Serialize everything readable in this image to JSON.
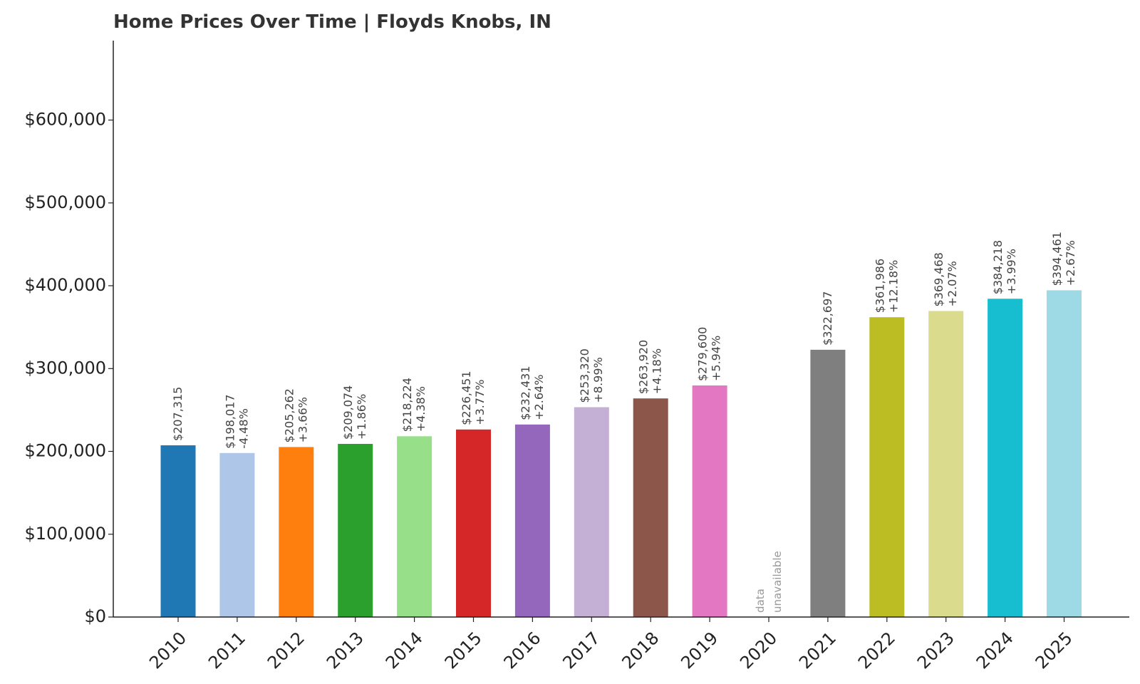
{
  "chart_data": {
    "type": "bar",
    "title": "Home Prices Over Time | Floyds Knobs, IN",
    "xlabel": "",
    "ylabel": "",
    "ylim": [
      0,
      700000
    ],
    "yticks": [
      0,
      100000,
      200000,
      300000,
      400000,
      500000,
      600000
    ],
    "ytick_labels": [
      "$0",
      "$100,000",
      "$200,000",
      "$300,000",
      "$400,000",
      "$500,000",
      "$600,000"
    ],
    "grid": false,
    "categories": [
      "2010",
      "2011",
      "2012",
      "2013",
      "2014",
      "2015",
      "2016",
      "2017",
      "2018",
      "2019",
      "2020",
      "2021",
      "2022",
      "2023",
      "2024",
      "2025"
    ],
    "values": [
      207315,
      198017,
      205262,
      209074,
      218224,
      226451,
      232431,
      253320,
      263920,
      279600,
      null,
      322697,
      361986,
      369468,
      384218,
      394461
    ],
    "value_labels": [
      "$207,315",
      "$198,017",
      "$205,262",
      "$209,074",
      "$218,224",
      "$226,451",
      "$232,431",
      "$253,320",
      "$263,920",
      "$279,600",
      "",
      "$322,697",
      "$361,986",
      "$369,468",
      "$384,218",
      "$394,461"
    ],
    "change_labels": [
      "",
      "-4.48%",
      "+3.66%",
      "+1.86%",
      "+4.38%",
      "+3.77%",
      "+2.64%",
      "+8.99%",
      "+4.18%",
      "+5.94%",
      "",
      "",
      "+12.18%",
      "+2.07%",
      "+3.99%",
      "+2.67%"
    ],
    "missing_label": [
      "data",
      "unavailable"
    ],
    "colors": [
      "#1f77b4",
      "#aec7e8",
      "#ff7f0e",
      "#2ca02c",
      "#98df8a",
      "#d62728",
      "#9467bd",
      "#c5b0d5",
      "#8c564b",
      "#e377c2",
      "#f7b6d2",
      "#7f7f7f",
      "#bcbd22",
      "#dbdb8d",
      "#17becf",
      "#9edae5"
    ]
  }
}
